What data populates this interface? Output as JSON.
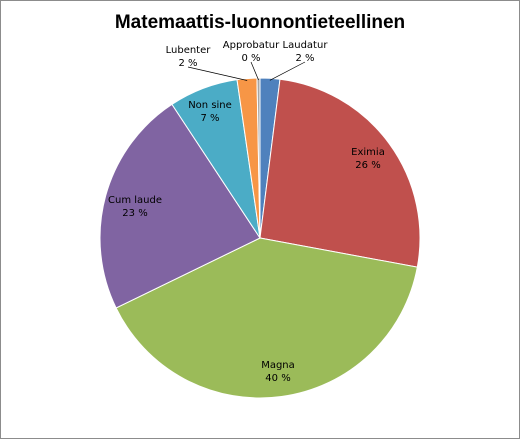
{
  "chart_data": {
    "type": "pie",
    "title": "Matemaattis-luonnontieteellinen",
    "slices": [
      {
        "label": "Laudatur",
        "value": 2,
        "value_label": "2 %",
        "color": "#4f81bd"
      },
      {
        "label": "Eximia",
        "value": 26,
        "value_label": "26 %",
        "color": "#c0504d"
      },
      {
        "label": "Magna",
        "value": 40,
        "value_label": "40 %",
        "color": "#9bbb59"
      },
      {
        "label": "Cum laude",
        "value": 23,
        "value_label": "23 %",
        "color": "#8064a2"
      },
      {
        "label": "Non sine",
        "value": 7,
        "value_label": "7 %",
        "color": "#4bacc6"
      },
      {
        "label": "Lubenter",
        "value": 2,
        "value_label": "2 %",
        "color": "#f79646"
      },
      {
        "label": "Approbatur",
        "value": 0.3,
        "value_label": "0 %",
        "color": "#a5a5a5"
      }
    ],
    "start_angle_deg": 0,
    "direction": "clockwise",
    "legend": "none",
    "data_labels": "category and percentage"
  }
}
